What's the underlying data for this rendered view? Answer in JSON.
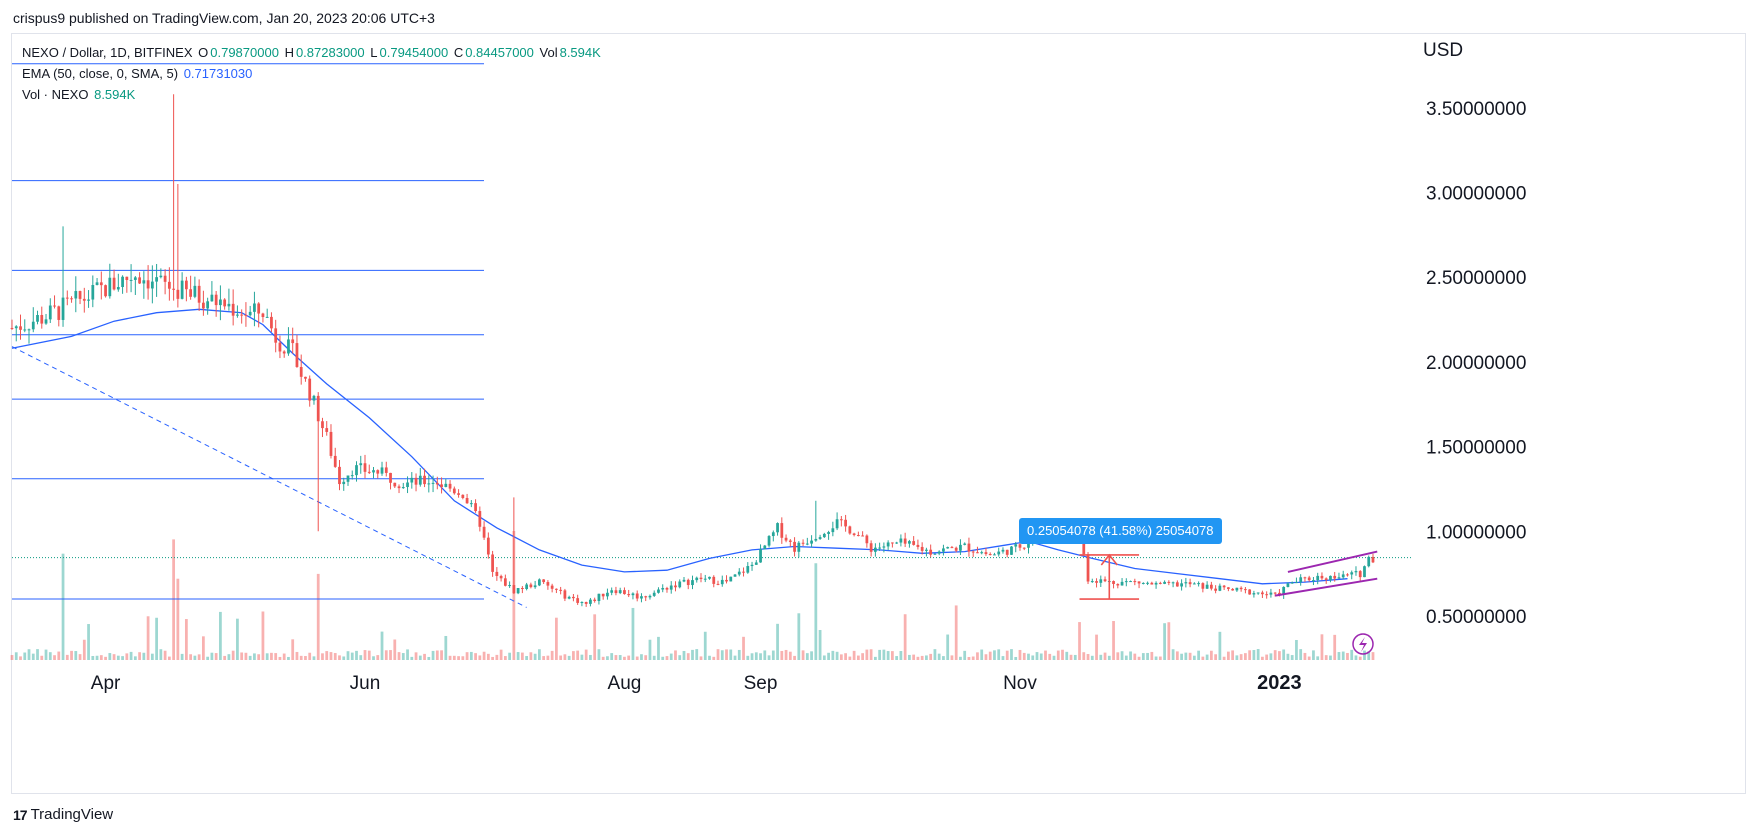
{
  "header": {
    "publisher": "crispus9 published on TradingView.com, Jan 20, 2023 20:06 UTC+3"
  },
  "legend": {
    "symbol": "NEXO / Dollar, 1D, BITFINEX",
    "o_label": "O",
    "o_value": "0.79870000",
    "h_label": "H",
    "h_value": "0.87283000",
    "l_label": "L",
    "l_value": "0.79454000",
    "c_label": "C",
    "c_value": "0.84457000",
    "vol_label": "Vol",
    "vol_value": "8.594K",
    "ema_label": "EMA (50, close, 0, SMA, 5)",
    "ema_value": "0.71731030",
    "vol_line_label": "Vol · NEXO",
    "vol_line_value": "8.594K"
  },
  "footer": {
    "brand": "TradingView",
    "logo_glyph": "17"
  },
  "colors": {
    "up": "#26a69a",
    "down": "#ef5350",
    "ema": "#2962ff",
    "line": "#2962ff",
    "channel": "#9c27b0",
    "measure": "#ef5350"
  },
  "measure_label": "0.25054078 (41.58%) 25054078",
  "chart_data": {
    "type": "candlestick",
    "currency_label": "USD",
    "y_ticks": [
      "3.50000000",
      "3.00000000",
      "2.50000000",
      "2.00000000",
      "1.50000000",
      "1.00000000",
      "0.50000000"
    ],
    "y_tick_values": [
      3.5,
      3.0,
      2.5,
      2.0,
      1.5,
      1.0,
      0.5
    ],
    "ylim": [
      0.24,
      3.9
    ],
    "x_ticks": [
      "Apr",
      "Jun",
      "Aug",
      "Sep",
      "Nov",
      "2023"
    ],
    "x_tick_days": [
      8,
      69,
      130,
      162,
      223,
      284
    ],
    "bold_x_tick": "2023",
    "xlim": [
      -14,
      310
    ],
    "last_price": 0.84457,
    "horizontal_levels": [
      3.76,
      3.07,
      2.54,
      2.16,
      1.78,
      1.31,
      0.6
    ],
    "trend_line": {
      "start": [
        -14,
        2.09
      ],
      "end": [
        107,
        0.55
      ]
    },
    "ema_points": [
      [
        -14,
        2.08
      ],
      [
        0,
        2.15
      ],
      [
        10,
        2.24
      ],
      [
        20,
        2.29
      ],
      [
        30,
        2.31
      ],
      [
        40,
        2.29
      ],
      [
        45,
        2.22
      ],
      [
        52,
        2.05
      ],
      [
        60,
        1.87
      ],
      [
        70,
        1.67
      ],
      [
        80,
        1.44
      ],
      [
        90,
        1.18
      ],
      [
        100,
        1.02
      ],
      [
        110,
        0.89
      ],
      [
        120,
        0.8
      ],
      [
        130,
        0.76
      ],
      [
        140,
        0.77
      ],
      [
        150,
        0.84
      ],
      [
        160,
        0.89
      ],
      [
        170,
        0.91
      ],
      [
        180,
        0.9
      ],
      [
        190,
        0.89
      ],
      [
        200,
        0.87
      ],
      [
        210,
        0.88
      ],
      [
        220,
        0.92
      ],
      [
        225,
        0.94
      ],
      [
        232,
        0.89
      ],
      [
        240,
        0.84
      ],
      [
        250,
        0.78
      ],
      [
        260,
        0.75
      ],
      [
        270,
        0.72
      ],
      [
        280,
        0.69
      ],
      [
        290,
        0.7
      ],
      [
        300,
        0.72
      ]
    ],
    "price_anchors": [
      [
        -14,
        2.2
      ],
      [
        -5,
        2.28
      ],
      [
        5,
        2.4
      ],
      [
        15,
        2.52
      ],
      [
        25,
        2.42
      ],
      [
        35,
        2.35
      ],
      [
        42,
        2.28
      ],
      [
        45,
        2.3
      ],
      [
        48,
        2.15
      ],
      [
        52,
        2.05
      ],
      [
        56,
        1.82
      ],
      [
        60,
        1.55
      ],
      [
        63,
        1.3
      ],
      [
        66,
        1.37
      ],
      [
        72,
        1.35
      ],
      [
        78,
        1.28
      ],
      [
        85,
        1.3
      ],
      [
        92,
        1.22
      ],
      [
        96,
        1.05
      ],
      [
        99,
        0.75
      ],
      [
        104,
        0.65
      ],
      [
        110,
        0.7
      ],
      [
        116,
        0.62
      ],
      [
        121,
        0.57
      ],
      [
        127,
        0.66
      ],
      [
        134,
        0.61
      ],
      [
        141,
        0.68
      ],
      [
        148,
        0.72
      ],
      [
        154,
        0.7
      ],
      [
        160,
        0.8
      ],
      [
        166,
        1.02
      ],
      [
        170,
        0.9
      ],
      [
        175,
        0.98
      ],
      [
        180,
        1.05
      ],
      [
        184,
        1.0
      ],
      [
        188,
        0.9
      ],
      [
        195,
        0.93
      ],
      [
        202,
        0.88
      ],
      [
        210,
        0.91
      ],
      [
        216,
        0.86
      ],
      [
        222,
        0.9
      ],
      [
        228,
        0.98
      ],
      [
        233,
        1.03
      ],
      [
        237,
        1.0
      ],
      [
        239,
        0.72
      ],
      [
        244,
        0.7
      ],
      [
        250,
        0.7
      ],
      [
        256,
        0.68
      ],
      [
        262,
        0.69
      ],
      [
        270,
        0.66
      ],
      [
        278,
        0.64
      ],
      [
        283,
        0.62
      ],
      [
        287,
        0.7
      ],
      [
        293,
        0.73
      ],
      [
        298,
        0.73
      ],
      [
        303,
        0.75
      ],
      [
        305,
        0.84
      ]
    ],
    "price_spikes": [
      [
        -2,
        2.8
      ],
      [
        24,
        3.58
      ],
      [
        25,
        3.05
      ],
      [
        58,
        1.0
      ],
      [
        104,
        1.2
      ],
      [
        175,
        1.18
      ]
    ],
    "volume_max_label": "8.594K",
    "measure": {
      "x0": 237,
      "x1": 251,
      "top": 0.86,
      "bottom": 0.6,
      "mid_x": 244
    },
    "channel": {
      "upper": [
        [
          286,
          0.76
        ],
        [
          307,
          0.88
        ]
      ],
      "lower": [
        [
          283,
          0.62
        ],
        [
          307,
          0.72
        ]
      ]
    }
  }
}
